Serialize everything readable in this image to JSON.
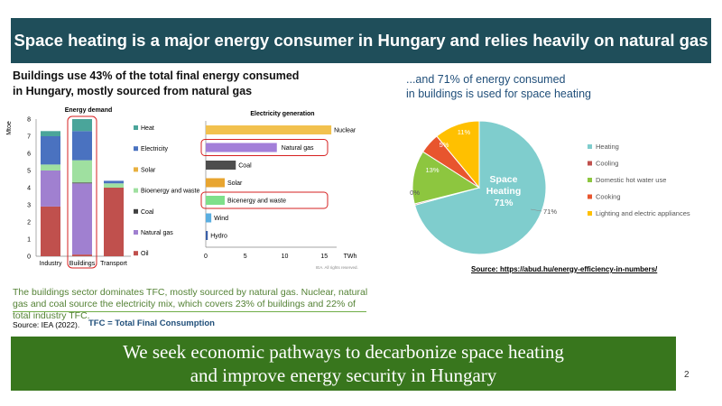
{
  "header": {
    "title": "Space heating is a major energy consumer in Hungary and relies heavily on natural gas"
  },
  "left_heading": "Buildings use 43% of the total final energy consumed\nin Hungary, mostly sourced from natural gas",
  "right_heading": "...and 71% of energy consumed\nin buildings is used for space heating",
  "summary": "The buildings sector dominates TFC, mostly sourced by natural gas. Nuclear, natural gas and coal source the electricity mix, which covers 23% of buildings and 22% of total industry TFC.",
  "source_left": "Source: IEA (2022).",
  "tfc_definition": "TFC = Total Final Consumption",
  "source_right": "Source: https://abud.hu/energy-efficiency-in-numbers/",
  "footer": {
    "text": "We seek economic pathways to decarbonize space heating\nand improve energy security in Hungary"
  },
  "page_number": "2",
  "chart_data": [
    {
      "type": "bar",
      "stacked": true,
      "title": "Energy demand",
      "ylabel": "Mtoe",
      "ylim": [
        0,
        8
      ],
      "yticks": [
        "0",
        "1",
        "2",
        "3",
        "4",
        "5",
        "6",
        "7",
        "8"
      ],
      "categories": [
        "Industry",
        "Buildings",
        "Transport"
      ],
      "highlight": "Buildings",
      "series": [
        {
          "name": "Oil",
          "color": "#c0504d",
          "values": [
            2.9,
            0.1,
            4.0
          ]
        },
        {
          "name": "Natural gas",
          "color": "#a080d0",
          "values": [
            2.1,
            4.15,
            0.0
          ]
        },
        {
          "name": "Coal",
          "color": "#404040",
          "values": [
            0.0,
            0.05,
            0.0
          ]
        },
        {
          "name": "Bioenergy and waste",
          "color": "#9fe0a0",
          "values": [
            0.35,
            1.3,
            0.25
          ]
        },
        {
          "name": "Solar",
          "color": "#e8b040",
          "values": [
            0.0,
            0.0,
            0.0
          ]
        },
        {
          "name": "Electricity",
          "color": "#4a72c0",
          "values": [
            1.65,
            1.7,
            0.15
          ]
        },
        {
          "name": "Heat",
          "color": "#4aa59a",
          "values": [
            0.3,
            0.7,
            0.0
          ]
        }
      ],
      "legend_order": [
        "Heat",
        "Electricity",
        "Solar",
        "Bioenergy and waste",
        "Coal",
        "Natural gas",
        "Oil"
      ]
    },
    {
      "type": "bar",
      "orientation": "horizontal",
      "title": "Electricity generation",
      "xlabel": "TWh",
      "xlim": [
        0,
        16
      ],
      "xticks": [
        "0",
        "5",
        "10",
        "15"
      ],
      "categories": [
        "Nuclear",
        "Natural gas",
        "Coal",
        "Solar",
        "Bicenergy and waste",
        "Wind",
        "Hydro"
      ],
      "values": [
        15.9,
        9.0,
        3.8,
        2.4,
        2.4,
        0.7,
        0.25
      ],
      "colors": [
        "#f2c14e",
        "#a37fd9",
        "#4d4d4d",
        "#e8a530",
        "#7ee08a",
        "#5aaee0",
        "#3a5fa8"
      ],
      "highlight": [
        "Natural gas",
        "Bicenergy and waste"
      ],
      "note": "IEA. All rights reserved."
    },
    {
      "type": "pie",
      "center_label": "Space\nHeating\n71%",
      "slices": [
        {
          "label": "Heating",
          "value": 71,
          "color": "#7fcdcd",
          "data_label": "71%"
        },
        {
          "label": "Cooling",
          "value": 0.3,
          "color": "#c0504d",
          "data_label": "0%"
        },
        {
          "label": "Domestic hot water use",
          "value": 13,
          "color": "#8dc63f",
          "data_label": "13%"
        },
        {
          "label": "Cooking",
          "value": 5,
          "color": "#e8552e",
          "data_label": "5%"
        },
        {
          "label": "Lighting and electric appliances",
          "value": 11,
          "color": "#ffc000",
          "data_label": "11%"
        }
      ]
    }
  ]
}
